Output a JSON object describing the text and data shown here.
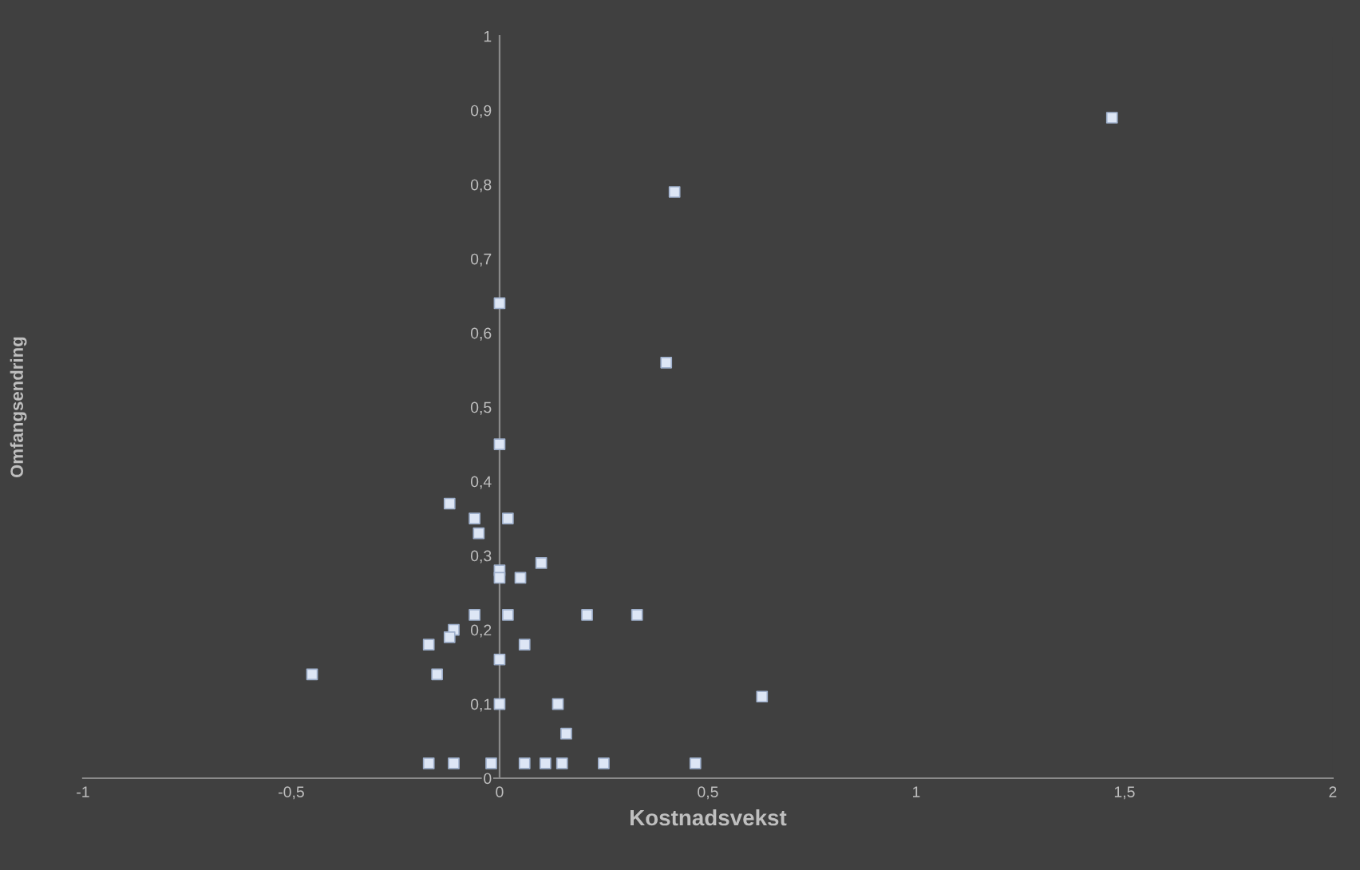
{
  "chart_data": {
    "type": "scatter",
    "xlabel": "Kostnadsvekst",
    "ylabel": "Omfangsendring",
    "x": [
      1.47,
      0.42,
      0.0,
      0.4,
      0.0,
      -0.12,
      -0.06,
      0.02,
      -0.05,
      0.0,
      0.1,
      0.0,
      0.05,
      -0.06,
      0.02,
      0.21,
      0.33,
      -0.11,
      -0.12,
      -0.17,
      0.06,
      0.0,
      -0.45,
      -0.15,
      0.0,
      0.14,
      0.16,
      0.63,
      -0.17,
      -0.11,
      -0.02,
      0.06,
      0.11,
      0.15,
      0.25,
      0.47
    ],
    "values": [
      0.89,
      0.79,
      0.64,
      0.56,
      0.45,
      0.37,
      0.35,
      0.35,
      0.33,
      0.28,
      0.29,
      0.27,
      0.27,
      0.22,
      0.22,
      0.22,
      0.22,
      0.2,
      0.19,
      0.18,
      0.18,
      0.16,
      0.14,
      0.14,
      0.1,
      0.1,
      0.06,
      0.11,
      0.02,
      0.02,
      0.02,
      0.02,
      0.02,
      0.02,
      0.02,
      0.02
    ],
    "color": "#dde6f5",
    "marker": "square",
    "xlim": [
      -1,
      2
    ],
    "ylim": [
      0,
      1
    ],
    "xticks": [
      -1,
      {
        "value": -0.5,
        "label": "-0,5"
      },
      0,
      {
        "value": 0.5,
        "label": "0,5"
      },
      1,
      {
        "value": 1.5,
        "label": "1,5"
      },
      2
    ],
    "yticks": [
      0,
      {
        "value": 0.1,
        "label": "0,1"
      },
      {
        "value": 0.2,
        "label": "0,2"
      },
      {
        "value": 0.3,
        "label": "0,3"
      },
      {
        "value": 0.4,
        "label": "0,4"
      },
      {
        "value": 0.5,
        "label": "0,5"
      },
      {
        "value": 0.6,
        "label": "0,6"
      },
      {
        "value": 0.7,
        "label": "0,7"
      },
      {
        "value": 0.8,
        "label": "0,8"
      },
      {
        "value": 0.9,
        "label": "0,9"
      },
      1
    ],
    "grid": false,
    "legend": false
  }
}
